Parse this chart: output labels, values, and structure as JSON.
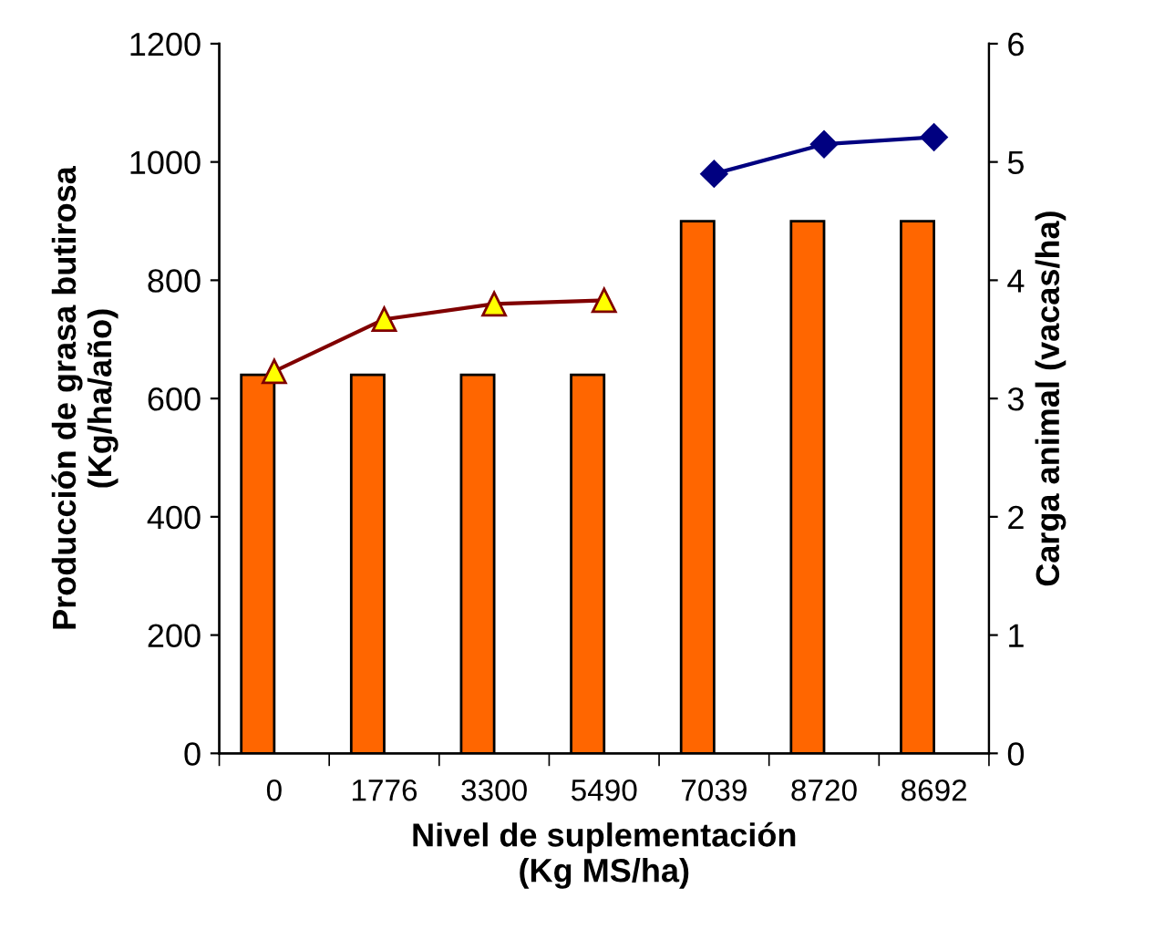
{
  "chart_data": {
    "type": "bar",
    "categories": [
      "0",
      "1776",
      "3300",
      "5490",
      "7039",
      "8720",
      "8692"
    ],
    "xlabel": "Nivel de suplementación\n(Kg MS/ha)",
    "ylabel": "Producción de grasa butirosa\n(Kg/ha/año)",
    "y2label": "Carga animal (vacas/ha)",
    "ylim": [
      0,
      1200
    ],
    "yticks": [
      0,
      200,
      400,
      600,
      800,
      1000,
      1200
    ],
    "y2lim": [
      0,
      6
    ],
    "y2ticks": [
      0,
      1,
      2,
      3,
      4,
      5,
      6
    ],
    "grid": false,
    "legend": false,
    "series": [
      {
        "color": "#ff6600",
        "values": [
          640,
          640,
          640,
          640,
          900,
          900,
          900
        ]
      },
      {
        "type": "line",
        "axis": "y2",
        "color": "#800000",
        "marker": "triangle",
        "values": [
          3.23,
          3.67,
          3.8,
          3.83,
          null,
          null,
          null
        ]
      },
      {
        "type": "line",
        "axis": "y2",
        "color": "#000080",
        "marker": "diamond",
        "values": [
          null,
          null,
          null,
          null,
          4.9,
          5.15,
          5.21
        ]
      }
    ]
  }
}
